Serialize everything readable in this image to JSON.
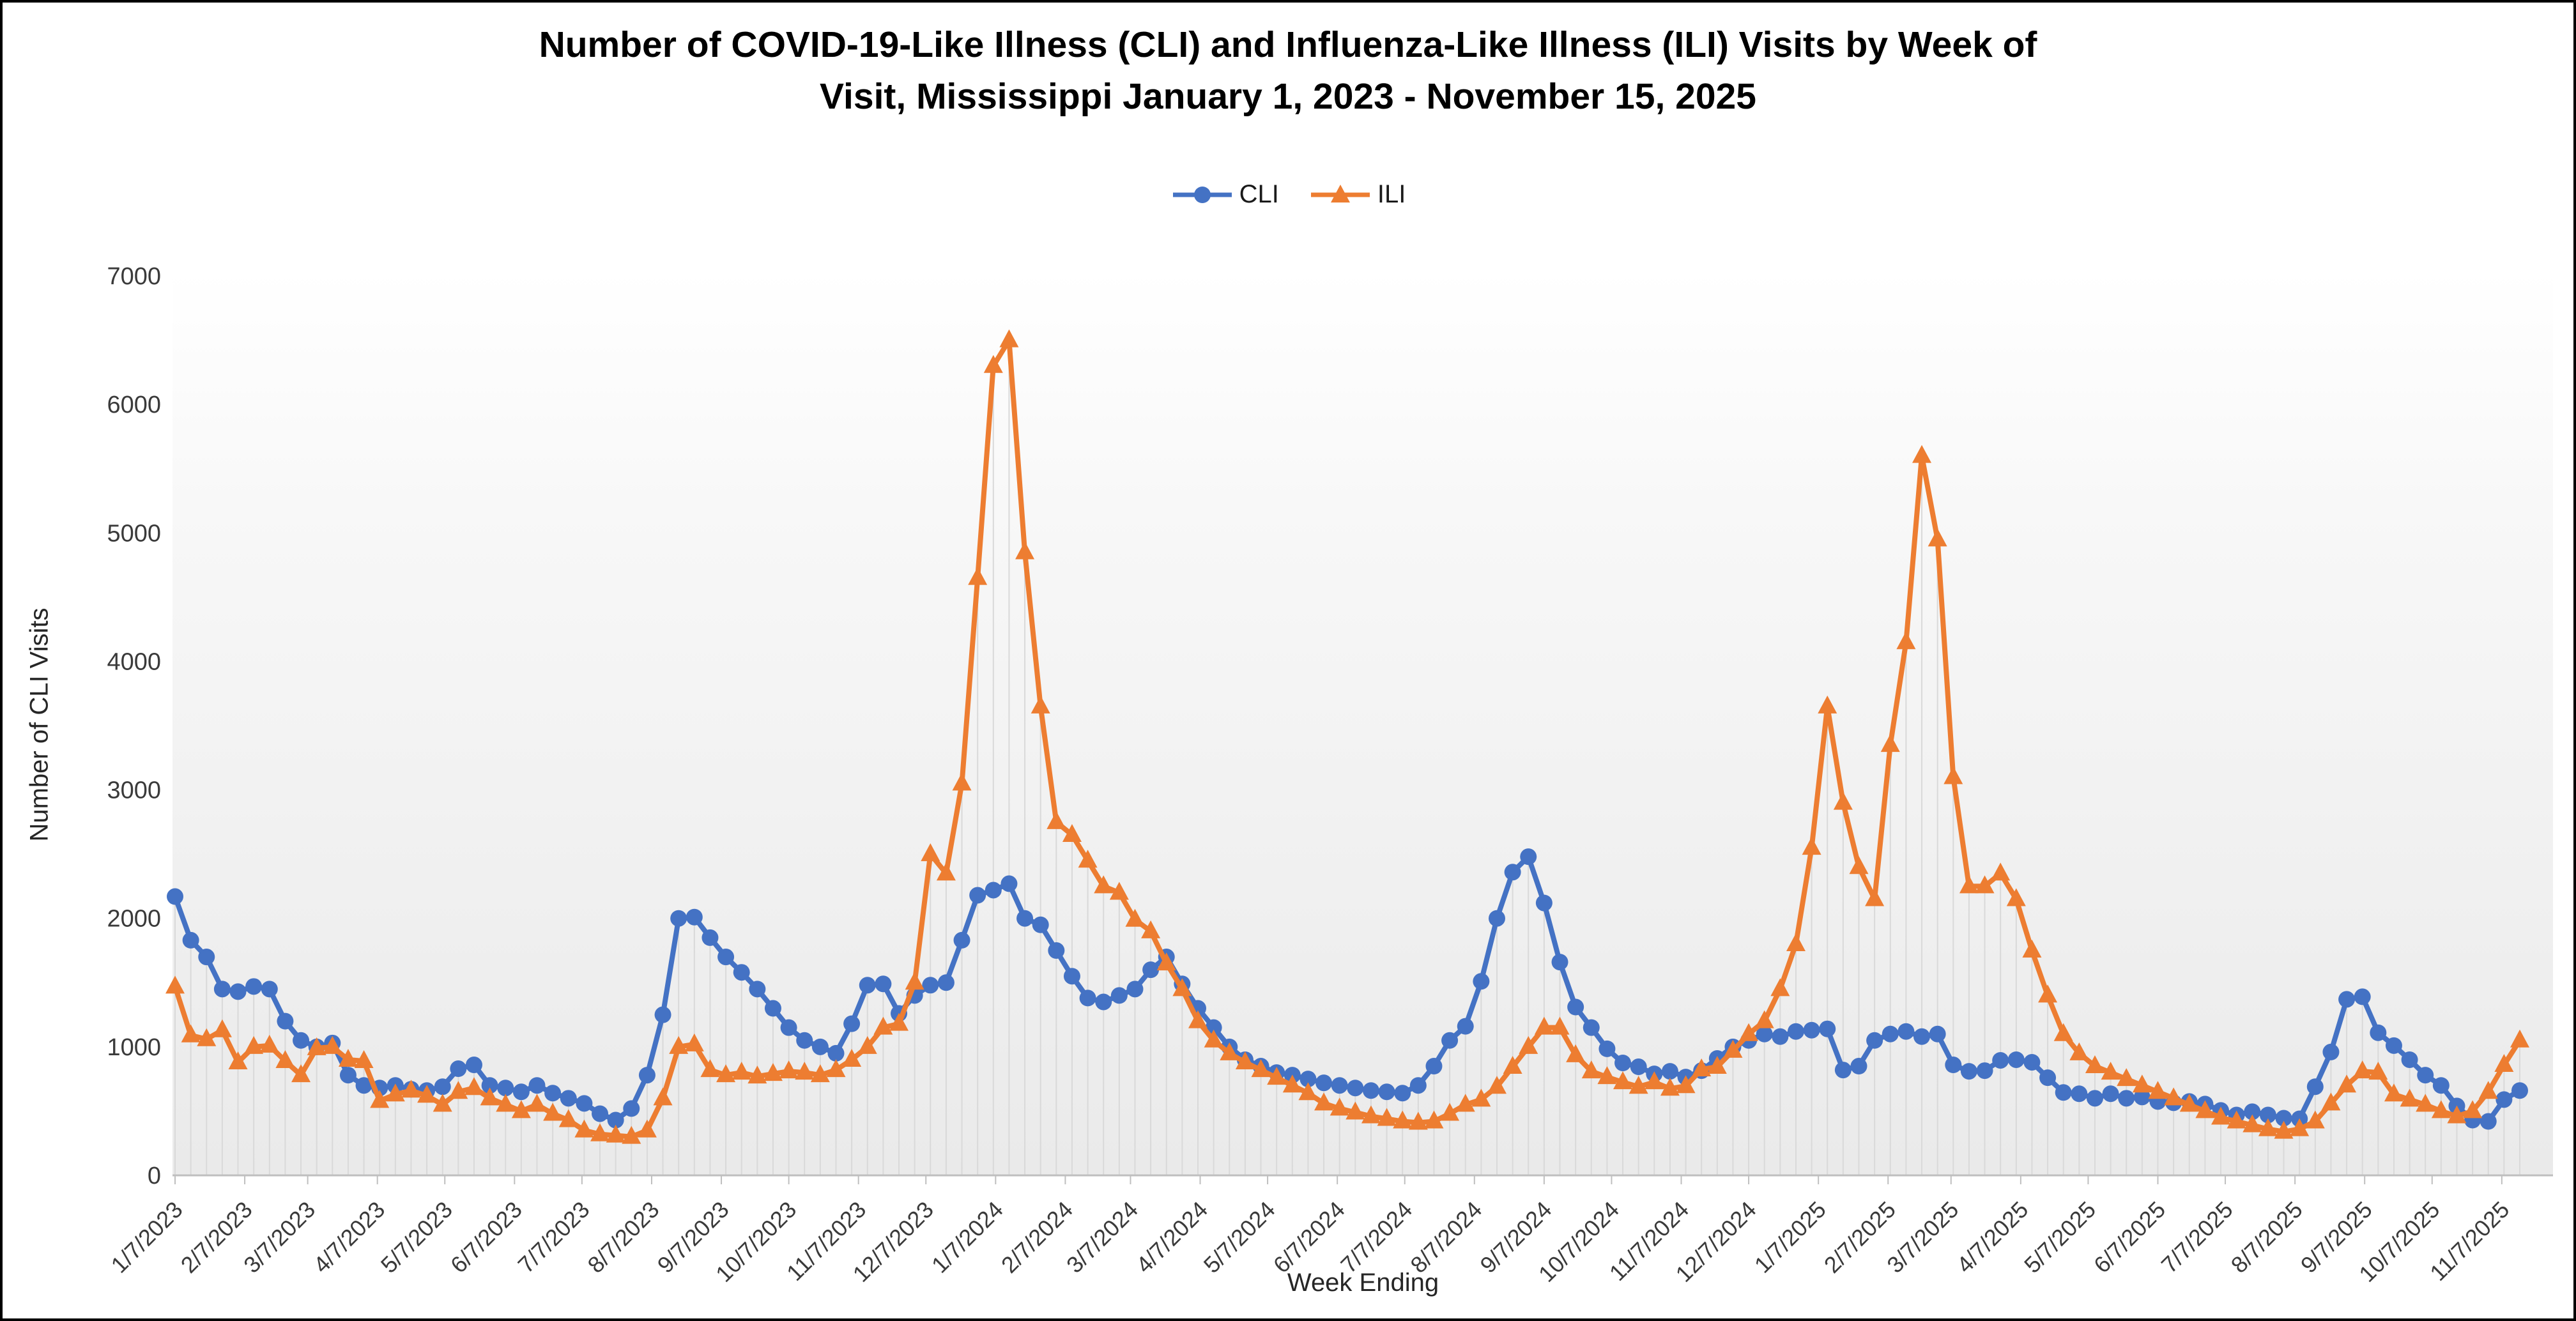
{
  "header": {
    "title_line1": "Number of COVID-19-Like Illness (CLI) and Influenza-Like Illness (ILI) Visits by Week of",
    "title_line2": "Visit, Mississippi January 1, 2023 - November 15, 2025"
  },
  "chart_data": {
    "type": "line",
    "title": "Number of COVID-19-Like Illness (CLI) and Influenza-Like Illness (ILI) Visits by Week of Visit, Mississippi January 1, 2023 - November 15, 2025",
    "xlabel": "Week Ending",
    "ylabel": "Number of CLI Visits",
    "ylim": [
      0,
      7000
    ],
    "yticks": [
      0,
      1000,
      2000,
      3000,
      4000,
      5000,
      6000,
      7000
    ],
    "grid": "off",
    "legend_position": "top-center",
    "plot_background": {
      "top": "#FFFFFF",
      "bottom": "#EAEAEA"
    },
    "drop_line_color": "#D9D9D9",
    "axis_line_color": "#BFBFBF",
    "tick_text_color": "#3A3A3A",
    "x_tick_labels": [
      "1/7/2023",
      "2/7/2023",
      "3/7/2023",
      "4/7/2023",
      "5/7/2023",
      "6/7/2023",
      "7/7/2023",
      "8/7/2023",
      "9/7/2023",
      "10/7/2023",
      "11/7/2023",
      "12/7/2023",
      "1/7/2024",
      "2/7/2024",
      "3/7/2024",
      "4/7/2024",
      "5/7/2024",
      "6/7/2024",
      "7/7/2024",
      "8/7/2024",
      "9/7/2024",
      "10/7/2024",
      "11/7/2024",
      "12/7/2024",
      "1/7/2025",
      "2/7/2025",
      "3/7/2025",
      "4/7/2025",
      "5/7/2025",
      "6/7/2025",
      "7/7/2025",
      "8/7/2025",
      "9/7/2025",
      "10/7/2025",
      "11/7/2025"
    ],
    "dates": [
      "1/7/2023",
      "1/14/2023",
      "1/21/2023",
      "1/28/2023",
      "2/4/2023",
      "2/11/2023",
      "2/18/2023",
      "2/25/2023",
      "3/4/2023",
      "3/11/2023",
      "3/18/2023",
      "3/25/2023",
      "4/1/2023",
      "4/8/2023",
      "4/15/2023",
      "4/22/2023",
      "4/29/2023",
      "5/6/2023",
      "5/13/2023",
      "5/20/2023",
      "5/27/2023",
      "6/3/2023",
      "6/10/2023",
      "6/17/2023",
      "6/24/2023",
      "7/1/2023",
      "7/8/2023",
      "7/15/2023",
      "7/22/2023",
      "7/29/2023",
      "8/5/2023",
      "8/12/2023",
      "8/19/2023",
      "8/26/2023",
      "9/2/2023",
      "9/9/2023",
      "9/16/2023",
      "9/23/2023",
      "9/30/2023",
      "10/7/2023",
      "10/14/2023",
      "10/21/2023",
      "10/28/2023",
      "11/4/2023",
      "11/11/2023",
      "11/18/2023",
      "11/25/2023",
      "12/2/2023",
      "12/9/2023",
      "12/16/2023",
      "12/23/2023",
      "12/30/2023",
      "1/6/2024",
      "1/13/2024",
      "1/20/2024",
      "1/27/2024",
      "2/3/2024",
      "2/10/2024",
      "2/17/2024",
      "2/24/2024",
      "3/2/2024",
      "3/9/2024",
      "3/16/2024",
      "3/23/2024",
      "3/30/2024",
      "4/6/2024",
      "4/13/2024",
      "4/20/2024",
      "4/27/2024",
      "5/4/2024",
      "5/11/2024",
      "5/18/2024",
      "5/25/2024",
      "6/1/2024",
      "6/8/2024",
      "6/15/2024",
      "6/22/2024",
      "6/29/2024",
      "7/6/2024",
      "7/13/2024",
      "7/20/2024",
      "7/27/2024",
      "8/3/2024",
      "8/10/2024",
      "8/17/2024",
      "8/24/2024",
      "8/31/2024",
      "9/7/2024",
      "9/14/2024",
      "9/21/2024",
      "9/28/2024",
      "10/5/2024",
      "10/12/2024",
      "10/19/2024",
      "10/26/2024",
      "11/2/2024",
      "11/9/2024",
      "11/16/2024",
      "11/23/2024",
      "11/30/2024",
      "12/7/2024",
      "12/14/2024",
      "12/21/2024",
      "12/28/2024",
      "1/4/2025",
      "1/11/2025",
      "1/18/2025",
      "1/25/2025",
      "2/1/2025",
      "2/8/2025",
      "2/15/2025",
      "2/22/2025",
      "3/1/2025",
      "3/8/2025",
      "3/15/2025",
      "3/22/2025",
      "3/29/2025",
      "4/5/2025",
      "4/12/2025",
      "4/19/2025",
      "4/26/2025",
      "5/3/2025",
      "5/10/2025",
      "5/17/2025",
      "5/24/2025",
      "5/31/2025",
      "6/7/2025",
      "6/14/2025",
      "6/21/2025",
      "6/28/2025",
      "7/5/2025",
      "7/12/2025",
      "7/19/2025",
      "7/26/2025",
      "8/2/2025",
      "8/9/2025",
      "8/16/2025",
      "8/23/2025",
      "8/30/2025",
      "9/6/2025",
      "9/13/2025",
      "9/20/2025",
      "9/27/2025",
      "10/4/2025",
      "10/11/2025",
      "10/18/2025",
      "10/25/2025",
      "11/1/2025",
      "11/8/2025",
      "11/15/2025"
    ],
    "series": [
      {
        "name": "CLI",
        "color": "#4472C4",
        "marker": "circle",
        "values": [
          2170,
          1830,
          1700,
          1450,
          1430,
          1470,
          1450,
          1200,
          1050,
          1000,
          1030,
          780,
          700,
          680,
          700,
          670,
          660,
          690,
          830,
          860,
          700,
          680,
          650,
          700,
          640,
          600,
          560,
          480,
          430,
          520,
          780,
          1250,
          2000,
          2010,
          1850,
          1700,
          1580,
          1450,
          1300,
          1150,
          1050,
          1000,
          950,
          1180,
          1480,
          1490,
          1260,
          1400,
          1480,
          1500,
          1830,
          2180,
          2220,
          2270,
          2000,
          1950,
          1750,
          1550,
          1380,
          1350,
          1400,
          1450,
          1600,
          1700,
          1490,
          1300,
          1150,
          1000,
          900,
          850,
          800,
          780,
          750,
          720,
          700,
          680,
          660,
          650,
          640,
          700,
          850,
          1050,
          1160,
          1510,
          2000,
          2360,
          2480,
          2120,
          1660,
          1310,
          1150,
          985,
          875,
          845,
          790,
          810,
          765,
          815,
          910,
          1000,
          1050,
          1100,
          1080,
          1120,
          1130,
          1140,
          820,
          850,
          1050,
          1100,
          1120,
          1080,
          1100,
          860,
          810,
          815,
          895,
          900,
          880,
          760,
          645,
          635,
          600,
          635,
          600,
          610,
          575,
          565,
          575,
          555,
          505,
          470,
          495,
          470,
          445,
          440,
          690,
          960,
          1370,
          1390,
          1110,
          1010,
          900,
          780,
          700,
          540,
          430,
          420,
          590,
          660
        ]
      },
      {
        "name": "ILI",
        "color": "#ED7D31",
        "marker": "triangle",
        "values": [
          1470,
          1090,
          1060,
          1130,
          880,
          1000,
          1010,
          890,
          780,
          990,
          1000,
          900,
          890,
          580,
          630,
          660,
          620,
          550,
          650,
          680,
          600,
          550,
          500,
          550,
          480,
          430,
          350,
          320,
          310,
          300,
          350,
          600,
          1000,
          1020,
          820,
          780,
          800,
          770,
          790,
          810,
          800,
          780,
          820,
          900,
          1000,
          1150,
          1180,
          1500,
          2500,
          2350,
          3050,
          4650,
          6300,
          6500,
          4850,
          3650,
          2750,
          2650,
          2450,
          2250,
          2200,
          1990,
          1900,
          1650,
          1450,
          1200,
          1050,
          950,
          880,
          820,
          760,
          700,
          640,
          560,
          520,
          490,
          460,
          440,
          420,
          410,
          420,
          480,
          550,
          590,
          690,
          845,
          1000,
          1150,
          1150,
          935,
          810,
          765,
          725,
          690,
          725,
          675,
          695,
          825,
          845,
          970,
          1100,
          1200,
          1450,
          1800,
          2550,
          3650,
          2900,
          2400,
          2150,
          3350,
          4150,
          5600,
          4950,
          3100,
          2250,
          2250,
          2350,
          2150,
          1750,
          1400,
          1100,
          950,
          850,
          800,
          750,
          700,
          650,
          600,
          550,
          500,
          450,
          420,
          390,
          360,
          340,
          360,
          420,
          560,
          700,
          810,
          800,
          630,
          590,
          550,
          500,
          460,
          500,
          650,
          860,
          1050
        ]
      }
    ]
  }
}
